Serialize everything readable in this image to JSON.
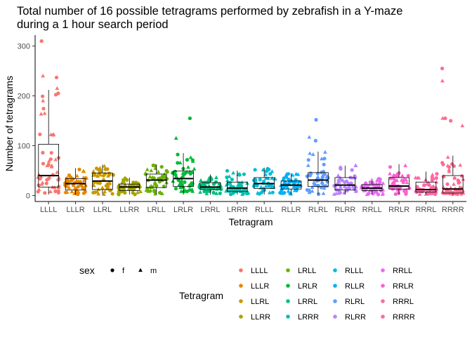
{
  "chart_data": {
    "type": "box+jitter",
    "title_line1": "Total number of 16 possible tetragrams performed by zebrafish in a Y-maze",
    "title_line2": "during a 1 hour search period",
    "xlabel": "Tetragram",
    "ylabel": "Number of tetragrams",
    "ylim": [
      -12,
      322
    ],
    "yticks": [
      0,
      100,
      200,
      300
    ],
    "yticks_labels": [
      "0",
      "100",
      "200",
      "300"
    ],
    "grid": false,
    "categories": [
      "LLLL",
      "LLLR",
      "LLRL",
      "LLRR",
      "LRLL",
      "LRLR",
      "LRRL",
      "LRRR",
      "RLLL",
      "RLLR",
      "RLRL",
      "RLRR",
      "RRLL",
      "RRLR",
      "RRRL",
      "RRRR"
    ],
    "colors": [
      "#F8766D",
      "#E58700",
      "#C99800",
      "#A3A500",
      "#6BB100",
      "#00BA38",
      "#00BF7D",
      "#00C0AF",
      "#00BCD8",
      "#00B0F6",
      "#619CFF",
      "#B983FF",
      "#E76BF3",
      "#FD61D1",
      "#FF67A4",
      "#FF6C91"
    ],
    "boxes": [
      {
        "q1": 17,
        "median": 40,
        "q3": 103,
        "whisker_low": 2,
        "whisker_high": 212,
        "outliers": [
          310,
          240,
          237,
          215,
          205,
          190
        ]
      },
      {
        "q1": 11,
        "median": 24,
        "q3": 34,
        "whisker_low": 2,
        "whisker_high": 55,
        "outliers": []
      },
      {
        "q1": 12,
        "median": 29,
        "q3": 45,
        "whisker_low": 2,
        "whisker_high": 62,
        "outliers": []
      },
      {
        "q1": 10,
        "median": 17,
        "q3": 23,
        "whisker_low": 2,
        "whisker_high": 36,
        "outliers": []
      },
      {
        "q1": 16,
        "median": 31,
        "q3": 43,
        "whisker_low": 2,
        "whisker_high": 62,
        "outliers": []
      },
      {
        "q1": 18,
        "median": 34,
        "q3": 49,
        "whisker_low": 2,
        "whisker_high": 85,
        "outliers": [
          155,
          115
        ]
      },
      {
        "q1": 12,
        "median": 17,
        "q3": 26,
        "whisker_low": 2,
        "whisker_high": 42,
        "outliers": []
      },
      {
        "q1": 8,
        "median": 15,
        "q3": 27,
        "whisker_low": 2,
        "whisker_high": 50,
        "outliers": []
      },
      {
        "q1": 14,
        "median": 24,
        "q3": 36,
        "whisker_low": 2,
        "whisker_high": 56,
        "outliers": []
      },
      {
        "q1": 13,
        "median": 21,
        "q3": 29,
        "whisker_low": 2,
        "whisker_high": 45,
        "outliers": []
      },
      {
        "q1": 18,
        "median": 31,
        "q3": 46,
        "whisker_low": 2,
        "whisker_high": 88,
        "outliers": [
          152,
          117,
          110
        ]
      },
      {
        "q1": 11,
        "median": 21,
        "q3": 36,
        "whisker_low": 2,
        "whisker_high": 60,
        "outliers": []
      },
      {
        "q1": 10,
        "median": 15,
        "q3": 22,
        "whisker_low": 2,
        "whisker_high": 34,
        "outliers": []
      },
      {
        "q1": 13,
        "median": 19,
        "q3": 36,
        "whisker_low": 2,
        "whisker_high": 63,
        "outliers": []
      },
      {
        "q1": 7,
        "median": 12,
        "q3": 27,
        "whisker_low": 2,
        "whisker_high": 48,
        "outliers": []
      },
      {
        "q1": 5,
        "median": 13,
        "q3": 40,
        "whisker_low": 2,
        "whisker_high": 80,
        "outliers": [
          255,
          230,
          155,
          155,
          150,
          140
        ]
      }
    ],
    "legend_position": "bottom",
    "legend_sex": {
      "title": "sex",
      "labels": [
        "f",
        "m"
      ],
      "shapes": [
        "circle",
        "triangle"
      ]
    },
    "legend_tetragram": {
      "title": "Tetragram"
    }
  }
}
